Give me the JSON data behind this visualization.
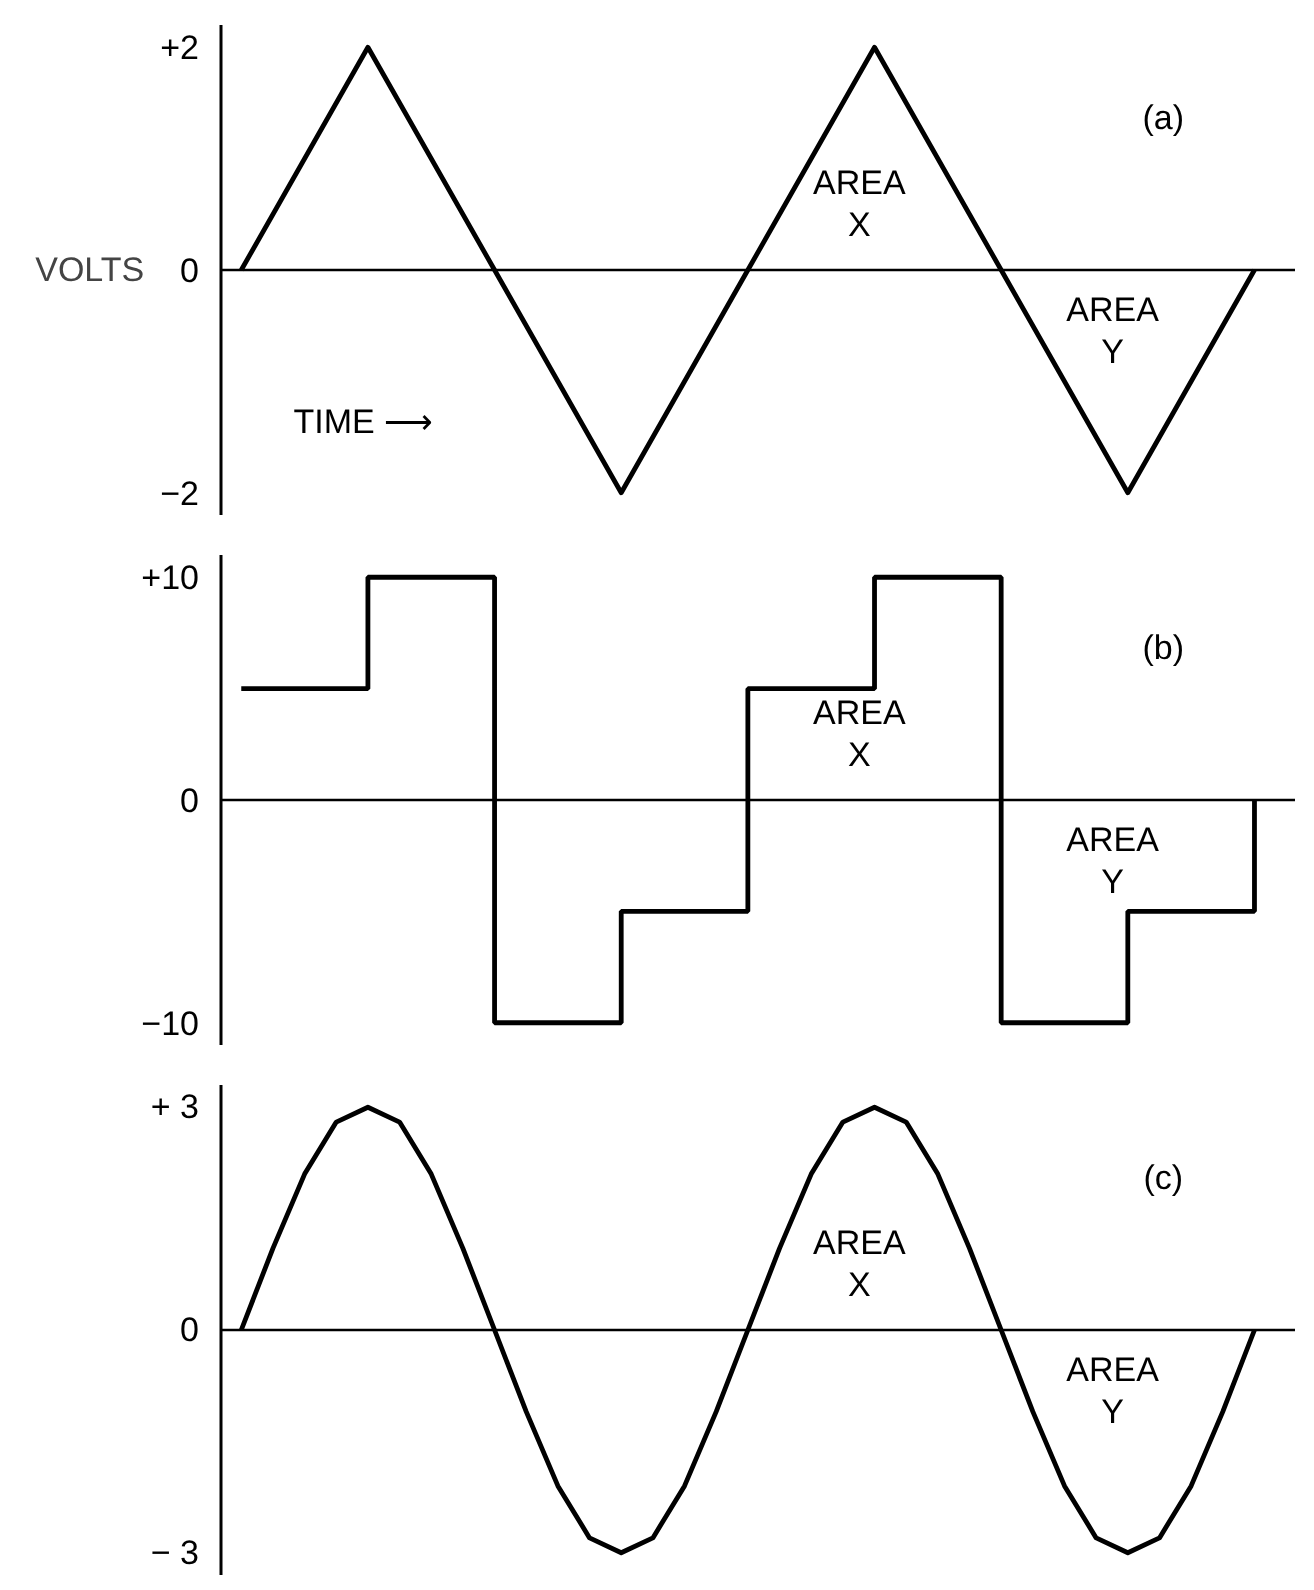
{
  "chart_data": [
    {
      "type": "line",
      "ylabel": "VOLTS",
      "categories": [
        null,
        null,
        null,
        null,
        null,
        null,
        null,
        null,
        null
      ],
      "series": [
        {
          "color": "#000000",
          "values": [
            0,
            2,
            0,
            -2,
            0,
            2,
            0,
            -2,
            0
          ]
        }
      ],
      "ylim": [
        -2.2,
        2.2
      ],
      "yticks": [
        {
          "value": 2,
          "label": "+2"
        },
        0,
        {
          "value": -2,
          "label": "−2"
        }
      ],
      "tick_labels": "y",
      "grid": false,
      "marker": "none",
      "line_style": "solid",
      "ref_lines": [
        {
          "axis": "y",
          "value": 0,
          "color": "#000000"
        }
      ],
      "annotations": [
        "(a)",
        "AREA\nX",
        "AREA\nY",
        "TIME ⟶"
      ]
    },
    {
      "type": "step",
      "categories": [
        null,
        null,
        null,
        null,
        null,
        null,
        null,
        null,
        null
      ],
      "series": [
        {
          "color": "#000000",
          "values": [
            5,
            10,
            -10,
            -5,
            5,
            10,
            -10,
            -5,
            0
          ]
        }
      ],
      "ylim": [
        -11,
        11
      ],
      "yticks": [
        {
          "value": 10,
          "label": "+10"
        },
        0,
        {
          "value": -10,
          "label": "−10"
        }
      ],
      "tick_labels": "y",
      "grid": false,
      "marker": "none",
      "line_style": "solid",
      "ref_lines": [
        {
          "axis": "y",
          "value": 0,
          "color": "#000000"
        }
      ],
      "annotations": [
        "(b)",
        "AREA\nX",
        "AREA\nY"
      ]
    },
    {
      "type": "line",
      "categories": [
        null,
        null,
        null,
        null,
        null,
        null,
        null,
        null,
        null,
        null,
        null,
        null,
        null,
        null,
        null,
        null,
        null,
        null,
        null,
        null,
        null,
        null,
        null,
        null,
        null,
        null,
        null,
        null,
        null,
        null,
        null,
        null,
        null
      ],
      "series": [
        {
          "color": "#000000",
          "values": [
            0,
            1.1,
            2.1,
            2.8,
            3,
            2.8,
            2.1,
            1.1,
            0,
            -1.1,
            -2.1,
            -2.8,
            -3,
            -2.8,
            -2.1,
            -1.1,
            0,
            1.1,
            2.1,
            2.8,
            3,
            2.8,
            2.1,
            1.1,
            0,
            -1.1,
            -2.1,
            -2.8,
            -3,
            -2.8,
            -2.1,
            -1.1,
            0
          ]
        }
      ],
      "ylim": [
        -3.3,
        3.3
      ],
      "yticks": [
        {
          "value": 3,
          "label": "+ 3"
        },
        0,
        {
          "value": -3,
          "label": "− 3"
        }
      ],
      "tick_labels": "y",
      "grid": false,
      "marker": "none",
      "line_style": "solid",
      "ref_lines": [
        {
          "axis": "y",
          "value": 0,
          "color": "#000000"
        }
      ],
      "annotations": [
        "(c)",
        "AREA\nX",
        "AREA\nY"
      ]
    }
  ]
}
